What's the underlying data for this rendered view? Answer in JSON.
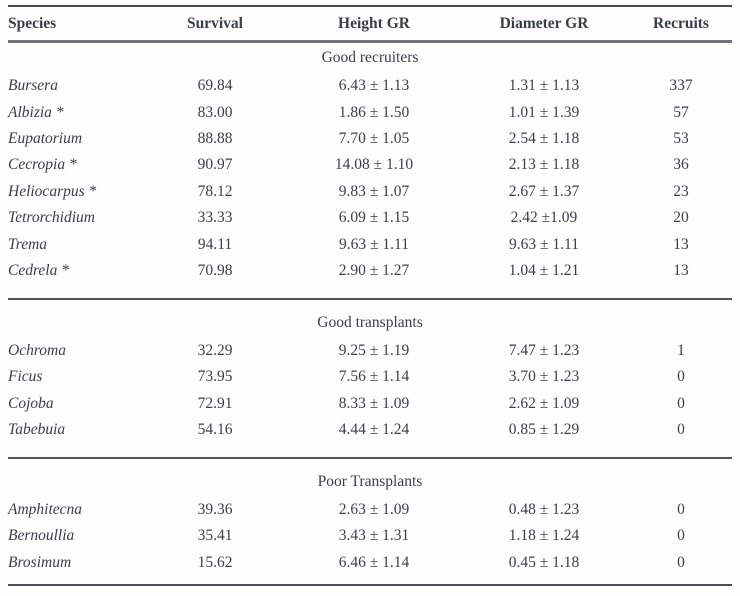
{
  "chart_data": {
    "type": "table",
    "columns": [
      "Species",
      "Survival",
      "Height GR",
      "Diameter GR",
      "Recruits"
    ],
    "sections": [
      {
        "title": "Good recruiters",
        "rows": [
          [
            "Bursera",
            "69.84",
            "6.43 ± 1.13",
            "1.31 ± 1.13",
            "337"
          ],
          [
            "Albizia *",
            "83.00",
            "1.86 ± 1.50",
            "1.01 ± 1.39",
            "57"
          ],
          [
            "Eupatorium",
            "88.88",
            "7.70 ± 1.05",
            "2.54 ± 1.18",
            "53"
          ],
          [
            "Cecropia *",
            "90.97",
            "14.08 ± 1.10",
            "2.13 ± 1.18",
            "36"
          ],
          [
            "Heliocarpus *",
            "78.12",
            "9.83 ± 1.07",
            "2.67 ± 1.37",
            "23"
          ],
          [
            "Tetrorchidium",
            "33.33",
            "6.09 ± 1.15",
            "2.42 ±1.09",
            "20"
          ],
          [
            "Trema",
            "94.11",
            "9.63 ± 1.11",
            "9.63 ± 1.11",
            "13"
          ],
          [
            "Cedrela *",
            "70.98",
            "2.90 ± 1.27",
            "1.04 ± 1.21",
            "13"
          ]
        ]
      },
      {
        "title": "Good transplants",
        "rows": [
          [
            "Ochroma",
            "32.29",
            "9.25 ± 1.19",
            "7.47 ± 1.23",
            "1"
          ],
          [
            "Ficus",
            "73.95",
            "7.56 ± 1.14",
            "3.70 ± 1.23",
            "0"
          ],
          [
            "Cojoba",
            "72.91",
            "8.33 ± 1.09",
            "2.62 ± 1.09",
            "0"
          ],
          [
            "Tabebuia",
            "54.16",
            "4.44 ± 1.24",
            "0.85 ± 1.29",
            "0"
          ]
        ]
      },
      {
        "title": "Poor Transplants",
        "rows": [
          [
            "Amphitecna",
            "39.36",
            "2.63 ± 1.09",
            "0.48 ± 1.23",
            "0"
          ],
          [
            "Bernoullia",
            "35.41",
            "3.43 ± 1.31",
            "1.18 ± 1.24",
            "0"
          ],
          [
            "Brosimum",
            "15.62",
            "6.46 ± 1.14",
            "0.45 ± 1.18",
            "0"
          ]
        ]
      }
    ]
  },
  "colors": {
    "text": "#3b3f45",
    "rule_dark": "#46494e",
    "rule_header": "#6e7176",
    "background": "#fefefe"
  }
}
